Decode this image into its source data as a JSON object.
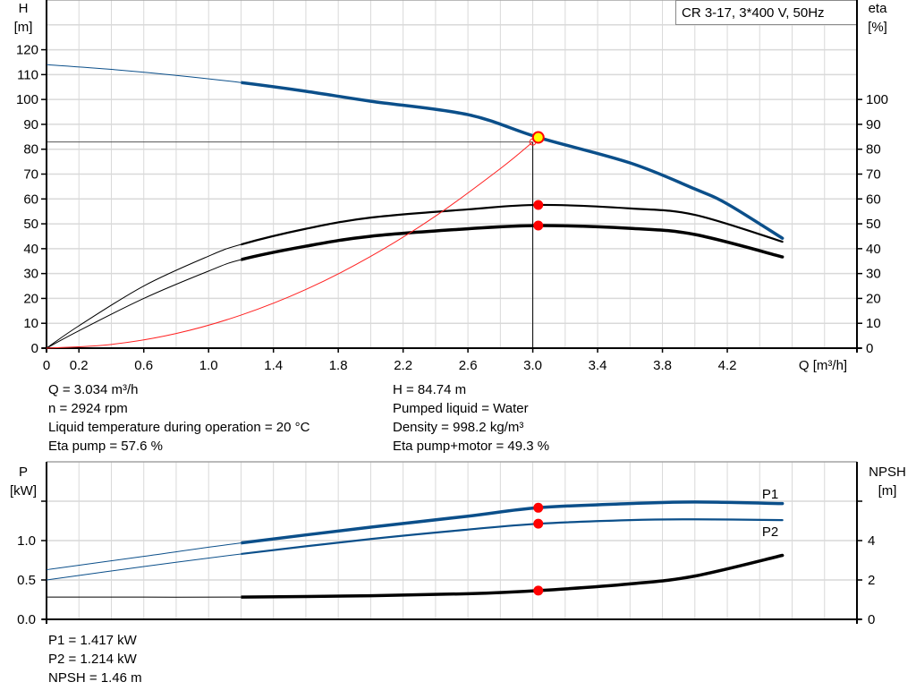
{
  "legend_box": "CR 3-17, 3*400 V, 50Hz",
  "colors": {
    "head": "#0b4f8a",
    "eta": "#000000",
    "system": "#ff2020",
    "point": "#ff0000",
    "duty_point": "#ffff00",
    "grid": "#d9d9d9"
  },
  "info_top_left": [
    "Q = 3.034 m³/h",
    "n = 2924 rpm",
    "Liquid temperature during operation = 20 °C",
    "Eta pump = 57.6 %"
  ],
  "info_top_right": [
    "H = 84.74 m",
    "Pumped liquid = Water",
    "Density = 998.2 kg/m³",
    "Eta pump+motor = 49.3 %"
  ],
  "info_bottom": [
    "P1 = 1.417 kW",
    "P2 = 1.214 kW",
    "NPSH = 1.46 m"
  ],
  "chart_data": [
    {
      "type": "line",
      "xlabel": "Q [m³/h]",
      "ylabel": "H\n[m]",
      "y2label": "eta\n[%]",
      "xlim": [
        0,
        5
      ],
      "ylim": [
        0,
        140
      ],
      "y2lim": [
        0,
        140
      ],
      "grid": true,
      "x_tick_labels": [
        "0",
        "0.2",
        "0.6",
        "1.0",
        "1.4",
        "1.8",
        "2.2",
        "2.6",
        "3.0",
        "3.4",
        "3.8",
        "4.2"
      ],
      "x_ticks": [
        0,
        0.2,
        0.6,
        1.0,
        1.4,
        1.8,
        2.2,
        2.6,
        3.0,
        3.4,
        3.8,
        4.2
      ],
      "y_ticks": [
        0,
        10,
        20,
        30,
        40,
        50,
        60,
        70,
        80,
        90,
        100,
        110,
        120
      ],
      "y2_ticks": [
        0,
        10,
        20,
        30,
        40,
        50,
        60,
        70,
        80,
        90,
        100
      ],
      "series": [
        {
          "key": "H",
          "axis": "left",
          "color": "#0b4f8a",
          "thick_from": 1.2,
          "x": [
            0,
            0.4,
            0.8,
            1.2,
            1.6,
            2.0,
            2.6,
            3.034,
            3.6,
            4.0,
            4.2,
            4.54
          ],
          "y": [
            114,
            112.1,
            109.7,
            106.8,
            103.3,
            99.3,
            93.9,
            84.74,
            74.5,
            64,
            58,
            44.2
          ]
        },
        {
          "key": "eta_pump",
          "axis": "right",
          "color": "#000000",
          "thick_from": 1.2,
          "x": [
            0,
            0.2,
            0.6,
            1.0,
            1.2,
            1.6,
            2.0,
            2.6,
            3.034,
            3.6,
            4.0,
            4.54
          ],
          "y": [
            0,
            9,
            25,
            37,
            41.7,
            48,
            52.5,
            55.8,
            57.6,
            56.2,
            53.6,
            42.8
          ]
        },
        {
          "key": "eta_pump_motor",
          "axis": "right",
          "color": "#000000",
          "thick_from": 1.2,
          "x": [
            0,
            0.2,
            0.6,
            1.0,
            1.2,
            1.6,
            2.0,
            2.6,
            3.034,
            3.6,
            4.0,
            4.54
          ],
          "y": [
            0,
            7,
            20,
            31,
            35.6,
            41,
            45,
            48,
            49.3,
            48.2,
            45.7,
            36.7
          ]
        },
        {
          "key": "system",
          "axis": "left",
          "color": "#ff2020",
          "x": [
            0,
            0.4,
            0.8,
            1.2,
            1.6,
            2.0,
            2.4,
            2.8,
            3.0
          ],
          "y": [
            0,
            1.5,
            5.9,
            13.3,
            23.6,
            36.9,
            53.1,
            72.2,
            82.9
          ]
        }
      ],
      "duty_point": {
        "Q": 3.034,
        "H": 84.74
      },
      "eta_points": [
        57.6,
        49.3
      ],
      "crosshair": {
        "Q": 3.0,
        "H": 82.9
      }
    },
    {
      "type": "line",
      "ylabel": "P\n[kW]",
      "y2label": "NPSH\n[m]",
      "xlim": [
        0,
        5
      ],
      "ylim": [
        0,
        2
      ],
      "y2lim": [
        0,
        8
      ],
      "grid": true,
      "y_tick_labels": [
        "0.0",
        "0.5",
        "1.0"
      ],
      "y_ticks": [
        0,
        0.5,
        1.0,
        1.5
      ],
      "y2_tick_labels": [
        "0",
        "2",
        "4"
      ],
      "y2_ticks": [
        0,
        2,
        4,
        6
      ],
      "series": [
        {
          "name": "P1",
          "axis": "left",
          "color": "#0b4f8a",
          "thick_from": 1.2,
          "x": [
            0,
            0.6,
            1.2,
            2.0,
            2.6,
            3.034,
            3.6,
            4.0,
            4.54
          ],
          "y": [
            0.63,
            0.8,
            0.97,
            1.17,
            1.31,
            1.417,
            1.47,
            1.49,
            1.47
          ]
        },
        {
          "name": "P2",
          "axis": "left",
          "color": "#0b4f8a",
          "thick_from": 1.2,
          "x": [
            0,
            0.6,
            1.2,
            2.0,
            2.6,
            3.034,
            3.6,
            4.0,
            4.54
          ],
          "y": [
            0.5,
            0.67,
            0.83,
            1.02,
            1.14,
            1.214,
            1.26,
            1.27,
            1.26
          ]
        },
        {
          "key": "NPSH",
          "axis": "right",
          "color": "#000000",
          "thick_from": 1.2,
          "x": [
            0,
            0.6,
            1.2,
            2.0,
            2.6,
            3.034,
            3.6,
            4.0,
            4.54
          ],
          "y": [
            1.13,
            1.13,
            1.13,
            1.2,
            1.3,
            1.46,
            1.8,
            2.2,
            3.25
          ]
        }
      ],
      "points": {
        "Q": 3.034,
        "P1": 1.417,
        "P2": 1.214,
        "NPSH": 1.46
      }
    }
  ]
}
